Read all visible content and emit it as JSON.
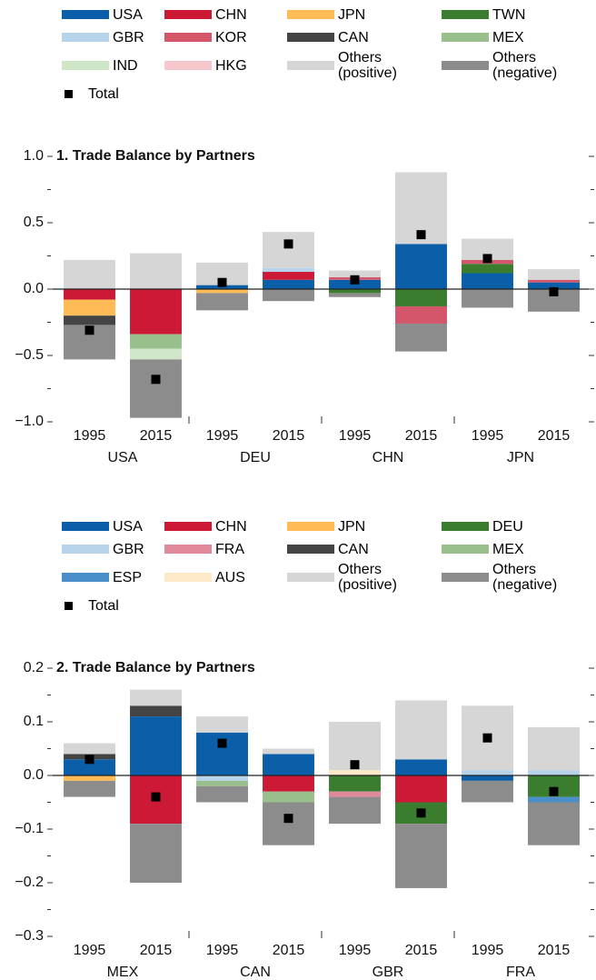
{
  "chart_data": [
    {
      "type": "bar",
      "stacked": true,
      "title": "1. Trade Balance by Partners",
      "categories": [
        "1995",
        "2015",
        "1995",
        "2015",
        "1995",
        "2015",
        "1995",
        "2015"
      ],
      "groups": [
        "USA",
        "DEU",
        "CHN",
        "JPN"
      ],
      "ylim": [
        -1,
        1
      ],
      "yticks": [
        {
          "value": -1,
          "label": "−1.0"
        },
        {
          "value": -0.5,
          "label": "−0.5"
        },
        {
          "value": 0,
          "label": "0.0"
        },
        {
          "value": 0.5,
          "label": "0.5"
        },
        {
          "value": 1,
          "label": "1.0"
        }
      ],
      "yminorticks": [
        -0.75,
        -0.25,
        0.25,
        0.75
      ],
      "grid": false,
      "series": [
        {
          "name": "USA",
          "color": "#0b5fa8",
          "values": [
            null,
            null,
            0.03,
            0.07,
            0.07,
            0.34,
            0.12,
            0.05
          ]
        },
        {
          "name": "CHN",
          "color": "#cc1a36",
          "values": [
            -0.08,
            -0.34,
            null,
            0.06,
            null,
            null,
            null,
            null
          ]
        },
        {
          "name": "JPN",
          "color": "#ffbb55",
          "values": [
            -0.12,
            null,
            -0.03,
            null,
            null,
            null,
            null,
            null
          ]
        },
        {
          "name": "TWN",
          "color": "#3a7d2e",
          "values": [
            null,
            null,
            null,
            null,
            -0.03,
            -0.13,
            0.07,
            null
          ]
        },
        {
          "name": "GBR",
          "color": "#b7d3ea",
          "values": [
            null,
            null,
            null,
            0.03,
            null,
            null,
            null,
            null
          ]
        },
        {
          "name": "KOR",
          "color": "#d4566b",
          "values": [
            null,
            null,
            null,
            null,
            0.02,
            -0.13,
            0.03,
            0.02
          ]
        },
        {
          "name": "CAN",
          "color": "#444444",
          "values": [
            -0.07,
            null,
            null,
            null,
            null,
            null,
            null,
            null
          ]
        },
        {
          "name": "MEX",
          "color": "#99c08c",
          "values": [
            null,
            -0.11,
            null,
            null,
            null,
            null,
            null,
            null
          ]
        },
        {
          "name": "IND",
          "color": "#cfe6c8",
          "values": [
            null,
            -0.08,
            null,
            null,
            null,
            null,
            null,
            null
          ]
        },
        {
          "name": "HKG",
          "color": "#f6c8ce",
          "values": [
            null,
            null,
            null,
            null,
            null,
            null,
            null,
            null
          ]
        },
        {
          "name": "Others (positive)",
          "color": "#d6d6d6",
          "values": [
            0.22,
            0.27,
            0.17,
            0.27,
            0.05,
            0.54,
            0.16,
            0.08
          ]
        },
        {
          "name": "Others (negative)",
          "color": "#8c8c8c",
          "values": [
            -0.26,
            -0.44,
            -0.13,
            -0.09,
            -0.03,
            -0.21,
            -0.14,
            -0.17
          ]
        }
      ],
      "total": {
        "name": "Total",
        "color": "#000000",
        "values": [
          -0.31,
          -0.68,
          0.05,
          0.34,
          0.07,
          0.41,
          0.23,
          -0.02
        ]
      }
    },
    {
      "type": "bar",
      "stacked": true,
      "title": "2. Trade Balance by Partners",
      "categories": [
        "1995",
        "2015",
        "1995",
        "2015",
        "1995",
        "2015",
        "1995",
        "2015"
      ],
      "groups": [
        "MEX",
        "CAN",
        "GBR",
        "FRA"
      ],
      "ylim": [
        -0.3,
        0.2
      ],
      "yticks": [
        {
          "value": -0.3,
          "label": "−0.3"
        },
        {
          "value": -0.2,
          "label": "−0.2"
        },
        {
          "value": -0.1,
          "label": "−0.1"
        },
        {
          "value": 0,
          "label": "0.0"
        },
        {
          "value": 0.1,
          "label": "0.1"
        },
        {
          "value": 0.2,
          "label": "0.2"
        }
      ],
      "yminorticks": [
        -0.25,
        -0.15,
        -0.05,
        0.05,
        0.15
      ],
      "grid": false,
      "series": [
        {
          "name": "USA",
          "color": "#0b5fa8",
          "values": [
            0.03,
            0.11,
            0.08,
            0.04,
            null,
            0.03,
            -0.01,
            null
          ]
        },
        {
          "name": "CHN",
          "color": "#cc1a36",
          "values": [
            null,
            -0.09,
            null,
            -0.03,
            null,
            -0.05,
            null,
            null
          ]
        },
        {
          "name": "JPN",
          "color": "#ffbb55",
          "values": [
            -0.01,
            null,
            null,
            null,
            null,
            null,
            null,
            null
          ]
        },
        {
          "name": "DEU",
          "color": "#3a7d2e",
          "values": [
            null,
            null,
            null,
            null,
            -0.03,
            -0.04,
            null,
            -0.04
          ]
        },
        {
          "name": "GBR",
          "color": "#b7d3ea",
          "values": [
            null,
            null,
            -0.01,
            null,
            null,
            null,
            0.01,
            0.01
          ]
        },
        {
          "name": "FRA",
          "color": "#e0899a",
          "values": [
            null,
            null,
            null,
            null,
            -0.01,
            null,
            null,
            null
          ]
        },
        {
          "name": "CAN",
          "color": "#444444",
          "values": [
            0.01,
            0.02,
            null,
            null,
            null,
            null,
            null,
            null
          ]
        },
        {
          "name": "MEX",
          "color": "#99c08c",
          "values": [
            null,
            null,
            -0.01,
            -0.02,
            null,
            null,
            null,
            null
          ]
        },
        {
          "name": "ESP",
          "color": "#4a8fc9",
          "values": [
            null,
            null,
            null,
            null,
            null,
            null,
            null,
            -0.01
          ]
        },
        {
          "name": "AUS",
          "color": "#fde8c8",
          "values": [
            null,
            null,
            null,
            null,
            0.01,
            null,
            null,
            null
          ]
        },
        {
          "name": "Others (positive)",
          "color": "#d6d6d6",
          "values": [
            0.02,
            0.03,
            0.03,
            0.01,
            0.09,
            0.11,
            0.12,
            0.08
          ]
        },
        {
          "name": "Others (negative)",
          "color": "#8c8c8c",
          "values": [
            -0.03,
            -0.11,
            -0.03,
            -0.08,
            -0.05,
            -0.12,
            -0.04,
            -0.08
          ]
        }
      ],
      "total": {
        "name": "Total",
        "color": "#000000",
        "values": [
          0.03,
          -0.04,
          0.06,
          -0.08,
          0.02,
          -0.07,
          0.07,
          -0.03
        ]
      }
    }
  ]
}
